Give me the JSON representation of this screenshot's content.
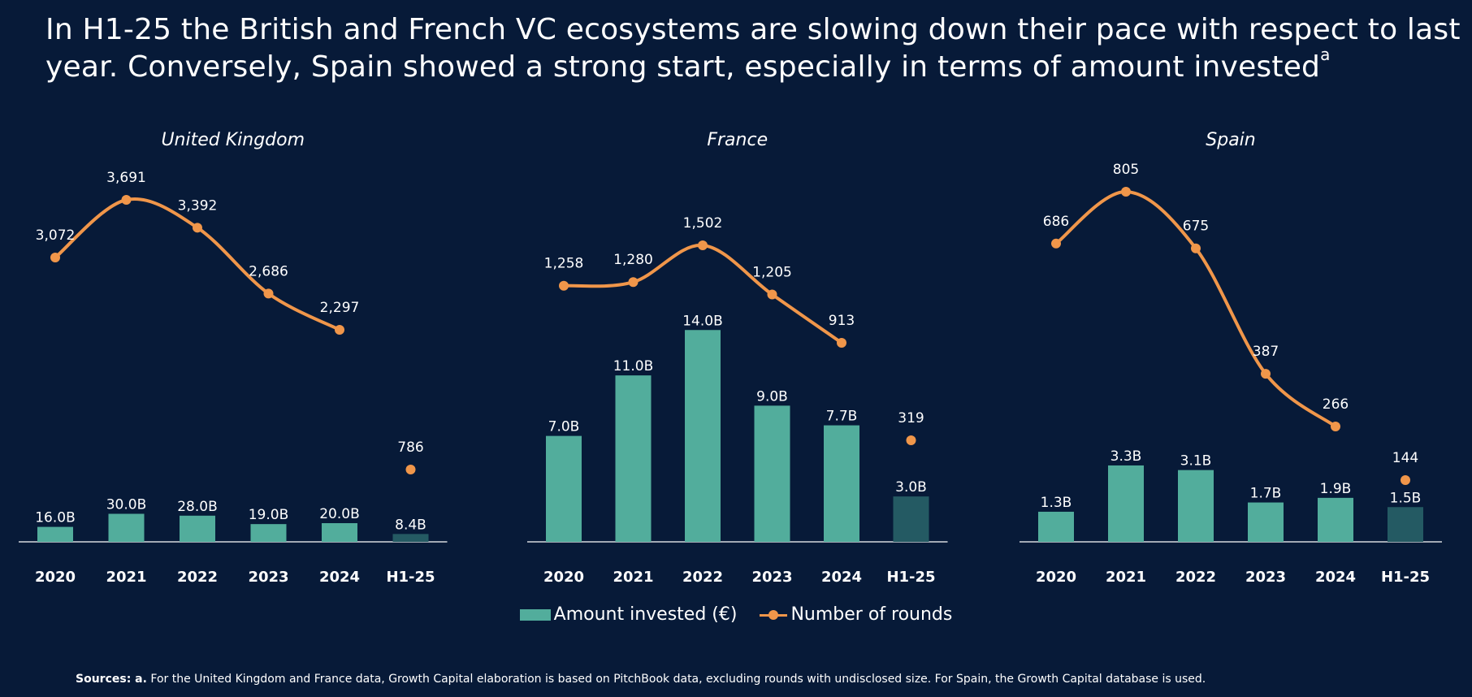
{
  "headline": {
    "text": "In H1-25 the British and French VC ecosystems are slowing down their pace with respect to last year. Conversely, Spain showed a strong start, especially in terms of amount invested",
    "superscript": "a"
  },
  "colors": {
    "background": "#071a38",
    "bar": "#52ad9c",
    "bar_partial": "#245a63",
    "line": "#f0964a"
  },
  "legend": {
    "bars": "Amount invested (€)",
    "line": "Number of rounds"
  },
  "sources": {
    "prefix": "Sources: a.",
    "text": "For the United Kingdom and France data, Growth Capital elaboration is based on PitchBook data, excluding rounds with undisclosed size. For Spain, the Growth Capital database is used."
  },
  "chart_data": [
    {
      "type": "bar",
      "title": "United Kingdom",
      "categories": [
        "2020",
        "2021",
        "2022",
        "2023",
        "2024",
        "H1-25"
      ],
      "series": [
        {
          "name": "Amount invested (€)",
          "unit": "B",
          "values": [
            16.0,
            30.0,
            28.0,
            19.0,
            20.0,
            8.4
          ],
          "labels": [
            "16.0B",
            "30.0B",
            "28.0B",
            "19.0B",
            "20.0B",
            "8.4B"
          ]
        },
        {
          "name": "Number of rounds",
          "type": "line",
          "values": [
            3072,
            3691,
            3392,
            2686,
            2297,
            786
          ],
          "labels": [
            "3,072",
            "3,691",
            "3,392",
            "2,686",
            "2,297",
            "786"
          ]
        }
      ]
    },
    {
      "type": "bar",
      "title": "France",
      "categories": [
        "2020",
        "2021",
        "2022",
        "2023",
        "2024",
        "H1-25"
      ],
      "series": [
        {
          "name": "Amount invested (€)",
          "unit": "B",
          "values": [
            7.0,
            11.0,
            14.0,
            9.0,
            7.7,
            3.0
          ],
          "labels": [
            "7.0B",
            "11.0B",
            "14.0B",
            "9.0B",
            "7.7B",
            "3.0B"
          ]
        },
        {
          "name": "Number of rounds",
          "type": "line",
          "values": [
            1258,
            1280,
            1502,
            1205,
            913,
            319
          ],
          "labels": [
            "1,258",
            "1,280",
            "1,502",
            "1,205",
            "913",
            "319"
          ]
        }
      ]
    },
    {
      "type": "bar",
      "title": "Spain",
      "categories": [
        "2020",
        "2021",
        "2022",
        "2023",
        "2024",
        "H1-25"
      ],
      "series": [
        {
          "name": "Amount invested (€)",
          "unit": "B",
          "values": [
            1.3,
            3.3,
            3.1,
            1.7,
            1.9,
            1.5
          ],
          "labels": [
            "1.3B",
            "3.3B",
            "3.1B",
            "1.7B",
            "1.9B",
            "1.5B"
          ]
        },
        {
          "name": "Number of rounds",
          "type": "line",
          "values": [
            686,
            805,
            675,
            387,
            266,
            144
          ],
          "labels": [
            "686",
            "805",
            "675",
            "387",
            "266",
            "144"
          ]
        }
      ]
    }
  ]
}
